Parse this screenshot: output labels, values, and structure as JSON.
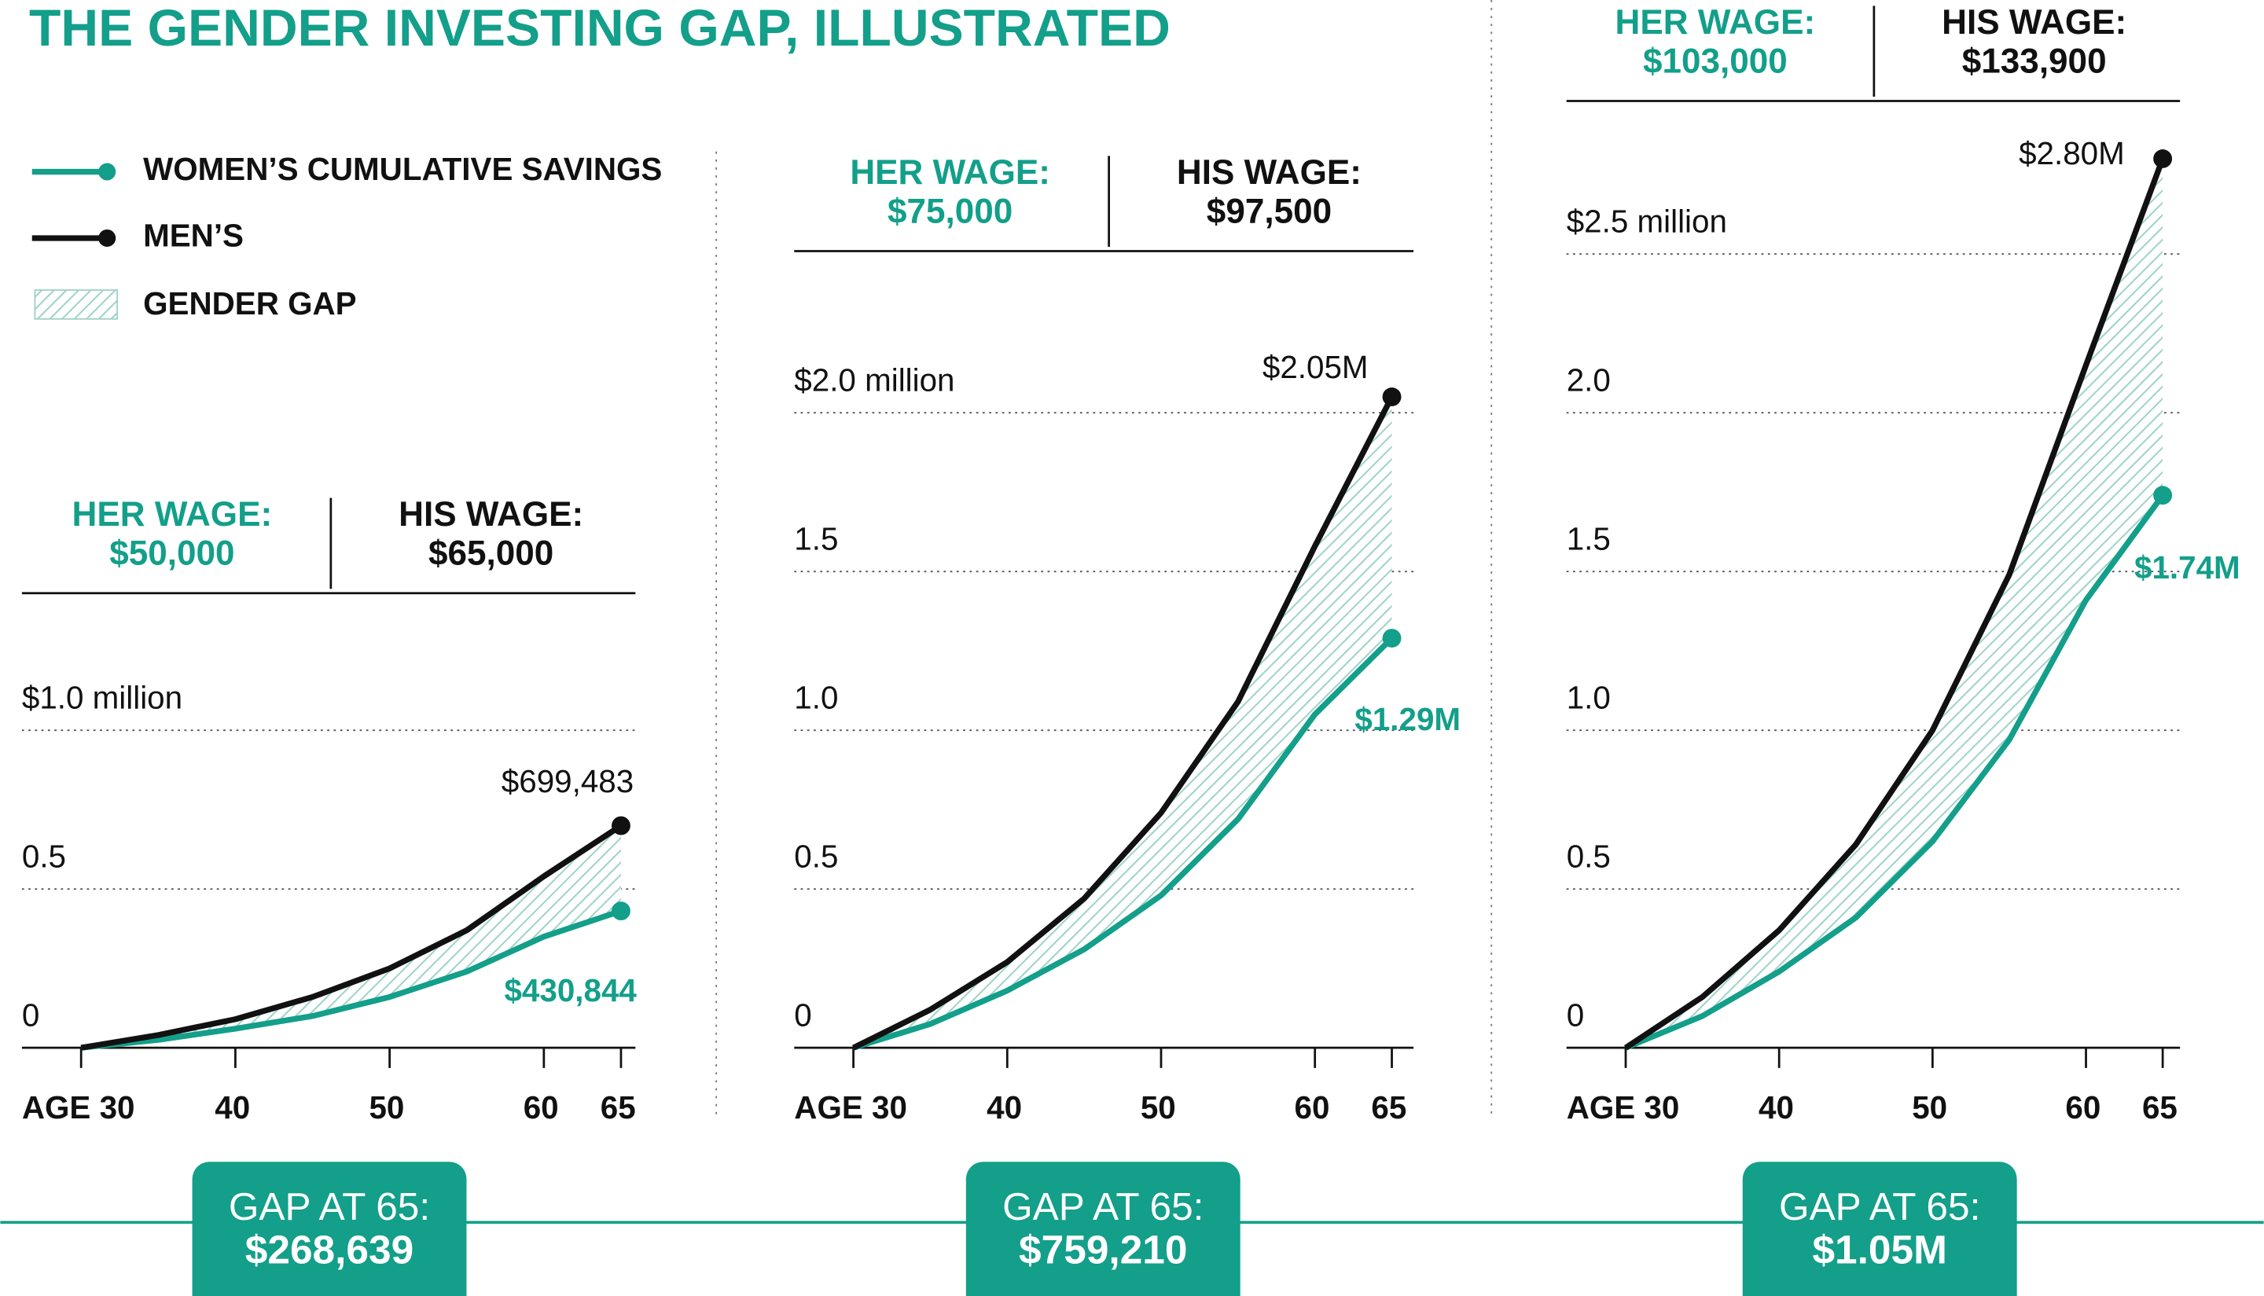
{
  "title": "THE GENDER INVESTING GAP, ILLUSTRATED",
  "legend_gap": "GENDER GAP",
  "chart_data": [
    {
      "type": "line",
      "her_wage_label": "HER WAGE:",
      "her_wage": "$50,000",
      "his_wage_label": "HIS WAGE:",
      "his_wage": "$65,000",
      "gap_label": "GAP AT 65:",
      "gap": "$268,639",
      "x": [
        30,
        35,
        40,
        45,
        50,
        55,
        60,
        65
      ],
      "xlim": [
        30,
        65
      ],
      "xticks": [
        {
          "value": 30,
          "label": "AGE 30"
        },
        40,
        50,
        60,
        65
      ],
      "ylim": [
        0,
        1
      ],
      "yticks": [
        0,
        0.5,
        {
          "value": 1,
          "label": "$1.0 million"
        }
      ],
      "grid": true,
      "series": [
        {
          "name": "WOMEN’S CUMULATIVE SAVINGS",
          "color": "#139f8a",
          "values": [
            0,
            0.025,
            0.06,
            0.1,
            0.16,
            0.24,
            0.35,
            0.430844
          ],
          "value_labels": [
            null,
            null,
            null,
            null,
            null,
            null,
            null,
            "$430,844"
          ]
        },
        {
          "name": "MEN’S",
          "color": "#111111",
          "values": [
            0,
            0.04,
            0.09,
            0.16,
            0.25,
            0.37,
            0.54,
            0.699483
          ],
          "value_labels": [
            null,
            null,
            null,
            null,
            null,
            null,
            null,
            "$699,483"
          ]
        }
      ]
    },
    {
      "type": "line",
      "her_wage_label": "HER WAGE:",
      "her_wage": "$75,000",
      "his_wage_label": "HIS WAGE:",
      "his_wage": "$97,500",
      "gap_label": "GAP AT 65:",
      "gap": "$759,210",
      "x": [
        30,
        35,
        40,
        45,
        50,
        55,
        60,
        65
      ],
      "xlim": [
        30,
        65
      ],
      "xticks": [
        {
          "value": 30,
          "label": "AGE 30"
        },
        40,
        50,
        60,
        65
      ],
      "ylim": [
        0,
        2
      ],
      "yticks": [
        0,
        0.5,
        {
          "value": 1,
          "label": "1.0"
        },
        1.5,
        {
          "value": 2,
          "label": "$2.0 million"
        }
      ],
      "grid": true,
      "series": [
        {
          "name": "WOMEN’S CUMULATIVE SAVINGS",
          "color": "#139f8a",
          "values": [
            0,
            0.075,
            0.18,
            0.31,
            0.48,
            0.72,
            1.05,
            1.29
          ],
          "value_labels": [
            null,
            null,
            null,
            null,
            null,
            null,
            null,
            "$1.29M"
          ]
        },
        {
          "name": "MEN’S",
          "color": "#111111",
          "values": [
            0,
            0.12,
            0.27,
            0.47,
            0.74,
            1.09,
            1.58,
            2.05
          ],
          "value_labels": [
            null,
            null,
            null,
            null,
            null,
            null,
            null,
            "$2.05M"
          ]
        }
      ]
    },
    {
      "type": "line",
      "her_wage_label": "HER WAGE:",
      "her_wage": "$103,000",
      "his_wage_label": "HIS WAGE:",
      "his_wage": "$133,900",
      "gap_label": "GAP AT 65:",
      "gap": "$1.05M",
      "x": [
        30,
        35,
        40,
        45,
        50,
        55,
        60,
        65
      ],
      "xlim": [
        30,
        65
      ],
      "xticks": [
        {
          "value": 30,
          "label": "AGE 30"
        },
        40,
        50,
        60,
        65
      ],
      "ylim": [
        0,
        2.5
      ],
      "yticks": [
        0,
        0.5,
        {
          "value": 1,
          "label": "1.0"
        },
        1.5,
        {
          "value": 2,
          "label": "2.0"
        },
        {
          "value": 2.5,
          "label": "$2.5 million"
        }
      ],
      "grid": true,
      "series": [
        {
          "name": "WOMEN’S CUMULATIVE SAVINGS",
          "color": "#139f8a",
          "values": [
            0,
            0.1,
            0.24,
            0.41,
            0.65,
            0.97,
            1.41,
            1.74
          ],
          "value_labels": [
            null,
            null,
            null,
            null,
            null,
            null,
            null,
            "$1.74M"
          ]
        },
        {
          "name": "MEN’S",
          "color": "#111111",
          "values": [
            0,
            0.16,
            0.37,
            0.64,
            1,
            1.49,
            2.15,
            2.8
          ],
          "value_labels": [
            null,
            null,
            null,
            null,
            null,
            null,
            null,
            "$2.80M"
          ]
        }
      ]
    }
  ]
}
